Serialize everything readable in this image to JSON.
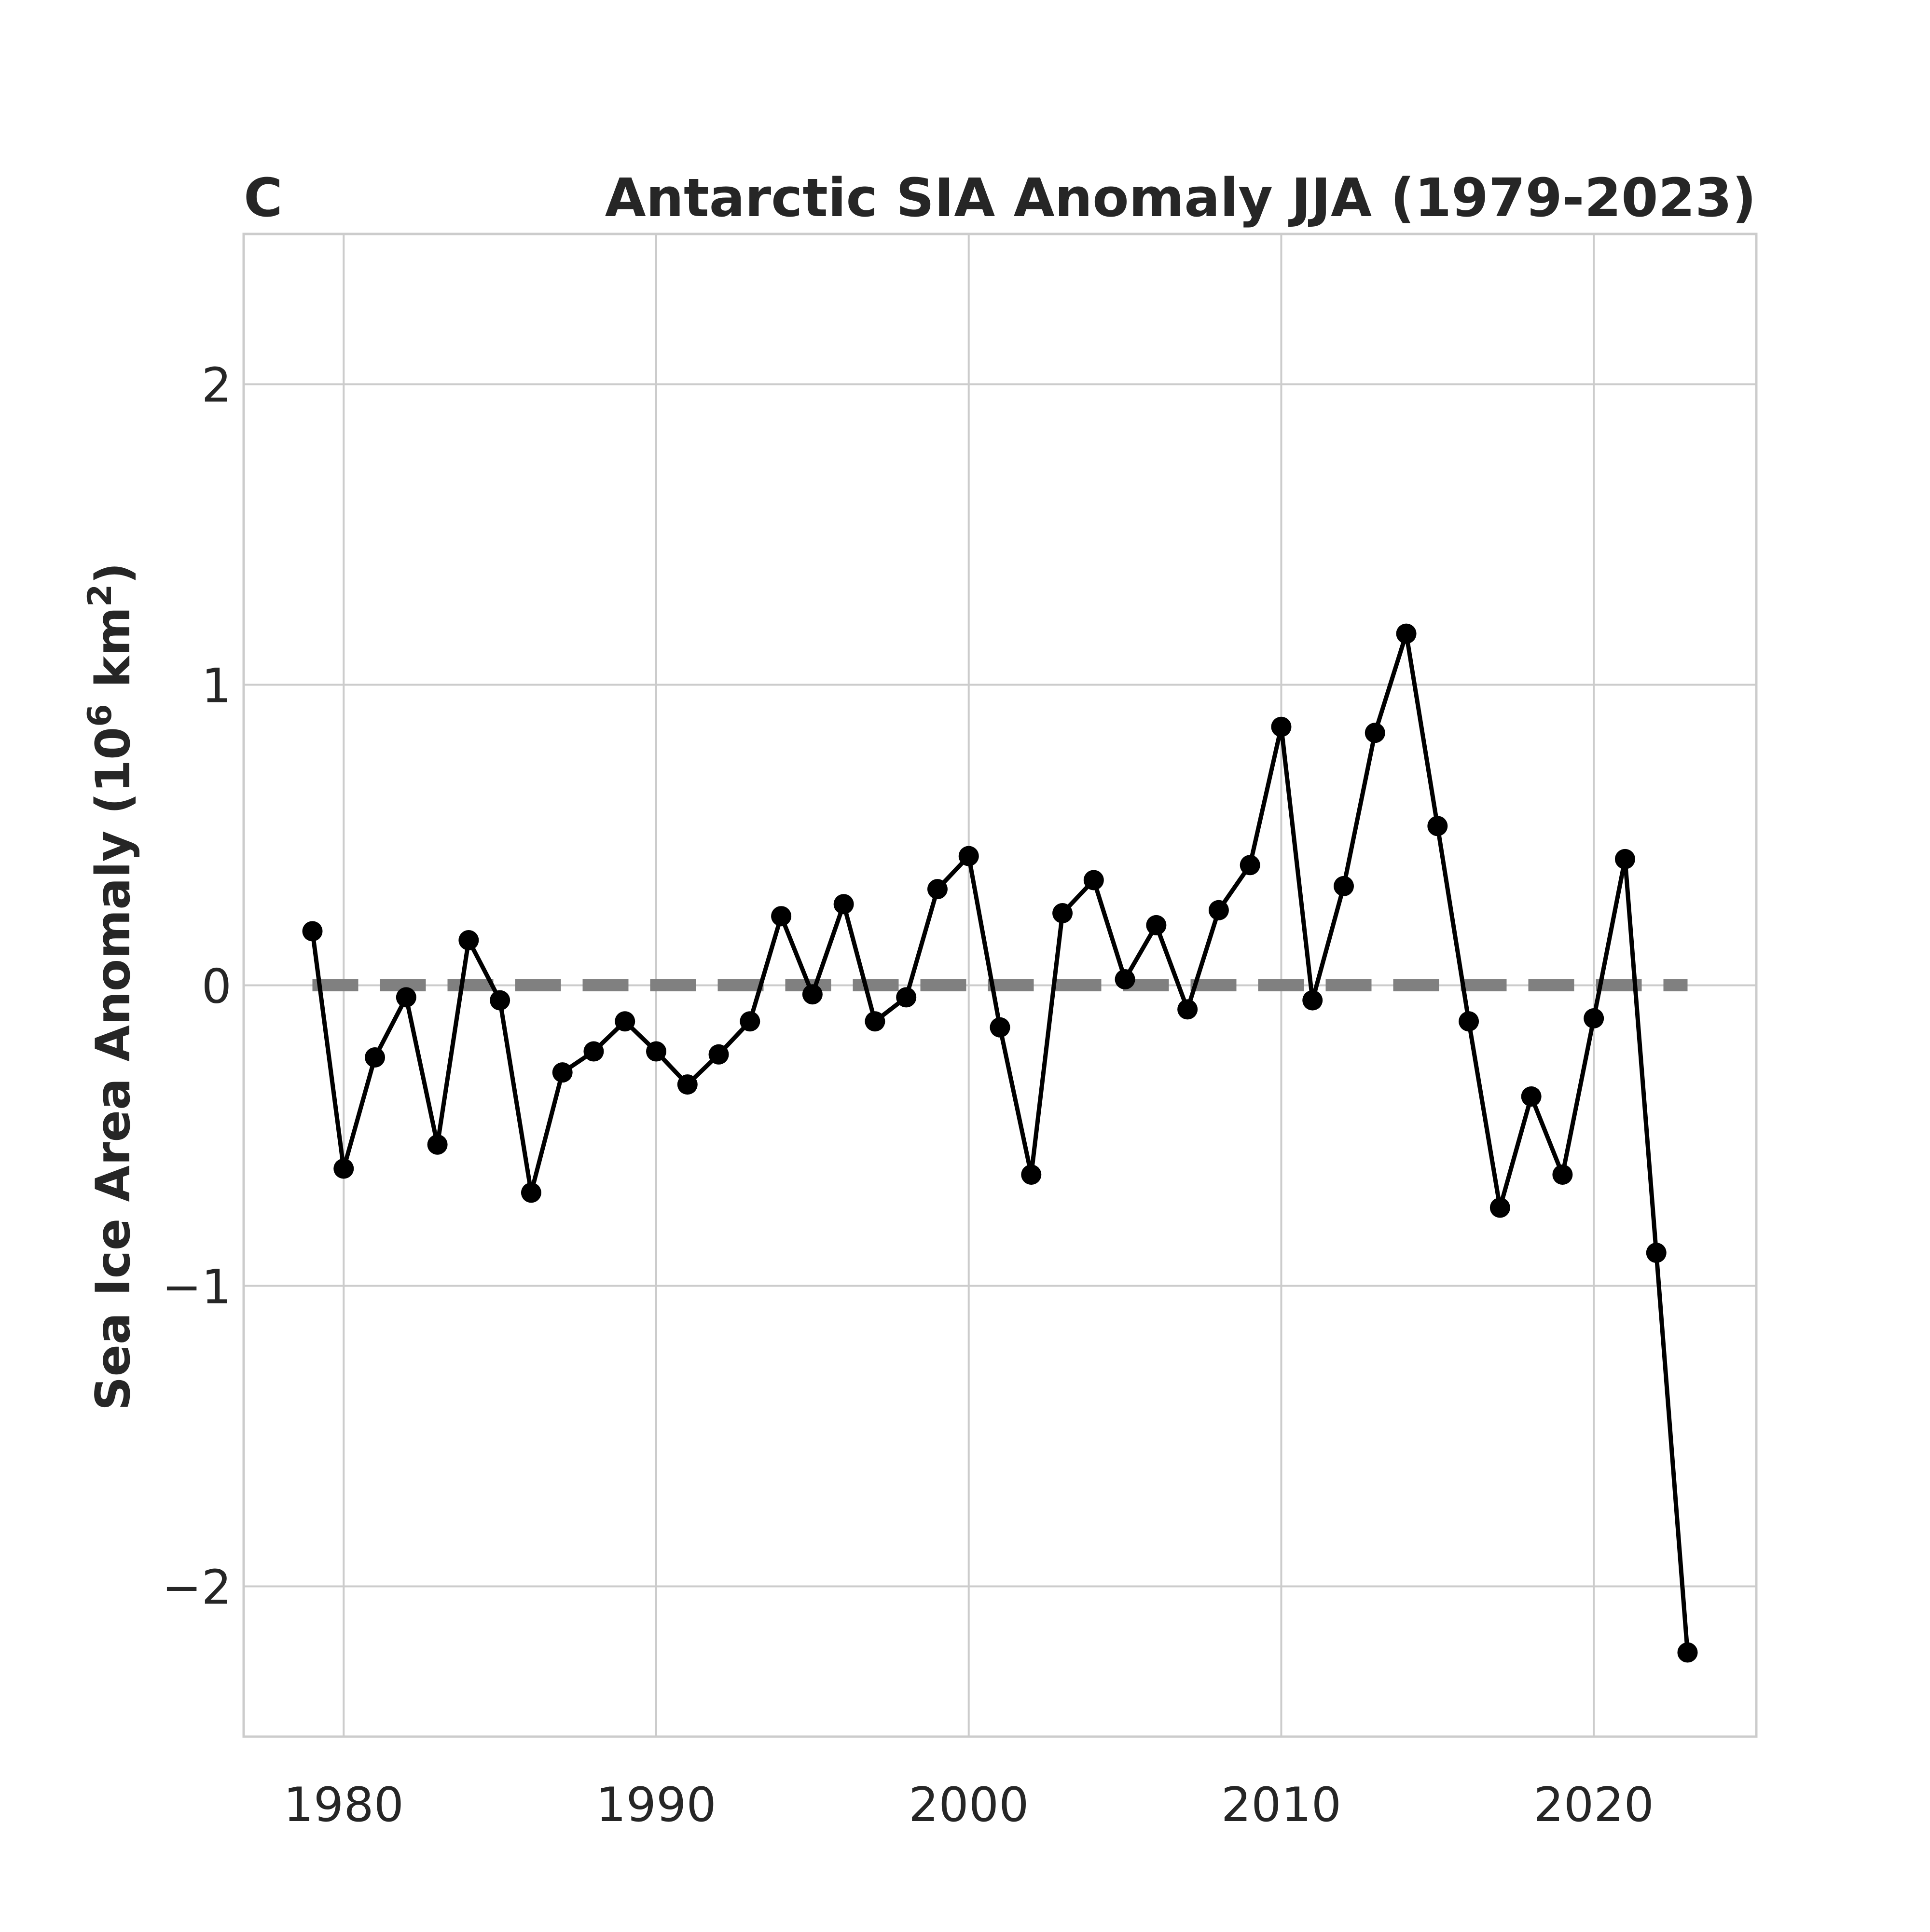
{
  "panel_label": "C",
  "chart_data": {
    "type": "line",
    "title": "Antarctic SIA Anomaly JJA (1979-2023)",
    "xlabel": "",
    "ylabel": {
      "prefix": "Sea Ice Area Anomaly (10",
      "sup1": "6",
      "mid": " km",
      "sup2": "2",
      "suffix": ")"
    },
    "xlim": [
      1976.8,
      2025.2
    ],
    "ylim": [
      -2.5,
      2.5
    ],
    "xticks": [
      1980,
      1990,
      2000,
      2010,
      2020
    ],
    "yticks": [
      {
        "value": -2,
        "label": "−2"
      },
      {
        "value": -1,
        "label": "−1"
      },
      {
        "value": 0,
        "label": "0"
      },
      {
        "value": 1,
        "label": "1"
      },
      {
        "value": 2,
        "label": "2"
      }
    ],
    "grid": true,
    "reference_line": {
      "y": 0,
      "x_range": [
        1979,
        2023
      ],
      "style": "dashed",
      "color": "#808080"
    },
    "series": [
      {
        "color": "#000000",
        "marker": "circle",
        "x": [
          1979,
          1980,
          1981,
          1982,
          1983,
          1984,
          1985,
          1986,
          1987,
          1988,
          1989,
          1990,
          1991,
          1992,
          1993,
          1994,
          1995,
          1996,
          1997,
          1998,
          1999,
          2000,
          2001,
          2002,
          2003,
          2004,
          2005,
          2006,
          2007,
          2008,
          2009,
          2010,
          2011,
          2012,
          2013,
          2014,
          2015,
          2016,
          2017,
          2018,
          2019,
          2020,
          2021,
          2022,
          2023
        ],
        "y": [
          0.18,
          -0.61,
          -0.24,
          -0.04,
          -0.53,
          0.15,
          -0.05,
          -0.69,
          -0.29,
          -0.22,
          -0.12,
          -0.22,
          -0.33,
          -0.23,
          -0.12,
          0.23,
          -0.03,
          0.27,
          -0.12,
          -0.04,
          0.32,
          0.43,
          -0.14,
          -0.63,
          0.24,
          0.35,
          0.02,
          0.2,
          -0.08,
          0.25,
          0.4,
          0.86,
          -0.05,
          0.33,
          0.84,
          1.17,
          0.53,
          -0.12,
          -0.74,
          -0.37,
          -0.63,
          -0.11,
          0.42,
          -0.89,
          -2.22
        ]
      }
    ]
  }
}
